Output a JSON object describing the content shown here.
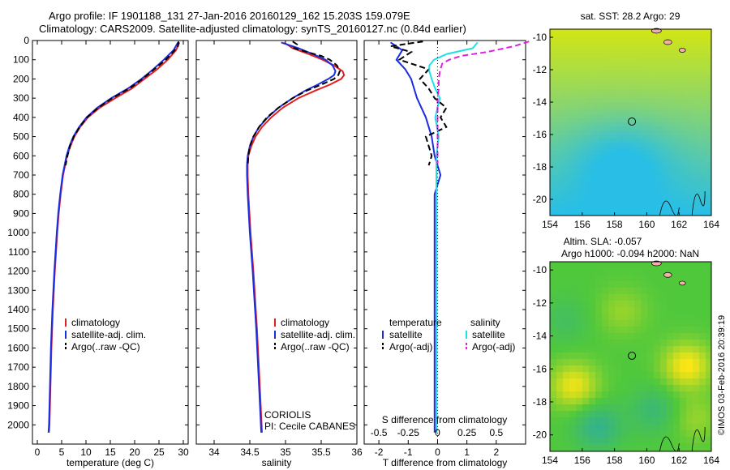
{
  "title": {
    "line1": "Argo profile: IF 1901188_131 27-Jan-2016 20160129_162 15.203S 159.079E",
    "line2": "Climatology: CARS2009. Satellite-adjusted climatology: synTS_20160127.nc (0.84d earlier)"
  },
  "colors": {
    "climatology": "#e02020",
    "satellite": "#1a2ee0",
    "argo": "#000000",
    "sal_satellite": "#1ee0e8",
    "sal_argo": "#e020e0"
  },
  "chart_data": [
    {
      "type": "line",
      "panel": "temperature",
      "xlabel": "temperature (deg C)",
      "ylabel": "",
      "xlim": [
        -1,
        31
      ],
      "ylim": [
        2100,
        0
      ],
      "xticks": [
        "0",
        "5",
        "10",
        "15",
        "20",
        "25",
        "30"
      ],
      "xtick_values": [
        0,
        5,
        10,
        15,
        20,
        25,
        30
      ],
      "yticks": [
        "0",
        "100",
        "200",
        "300",
        "400",
        "500",
        "600",
        "700",
        "800",
        "900",
        "1000",
        "1100",
        "1200",
        "1300",
        "1400",
        "1500",
        "1600",
        "1700",
        "1800",
        "1900",
        "2000"
      ],
      "ytick_values": [
        0,
        100,
        200,
        300,
        400,
        500,
        600,
        700,
        800,
        900,
        1000,
        1100,
        1200,
        1300,
        1400,
        1500,
        1600,
        1700,
        1800,
        1900,
        2000
      ],
      "legend": [
        "climatology",
        "satellite-adj. clim.",
        "Argo(..raw -QC)"
      ],
      "series": [
        {
          "name": "climatology",
          "color": "#e02020",
          "dash": false,
          "depth": [
            10,
            50,
            100,
            150,
            200,
            250,
            300,
            350,
            400,
            450,
            500,
            550,
            600,
            700,
            800,
            900,
            1000,
            1200,
            1400,
            1600,
            1800,
            2000,
            2040
          ],
          "values": [
            29.2,
            28.5,
            26.8,
            24.6,
            22.0,
            19.4,
            16.0,
            12.8,
            10.4,
            8.8,
            7.6,
            6.8,
            6.1,
            5.3,
            4.8,
            4.4,
            4.1,
            3.6,
            3.2,
            2.9,
            2.7,
            2.5,
            2.4
          ]
        },
        {
          "name": "satellite-adj. clim.",
          "color": "#1a2ee0",
          "dash": false,
          "depth": [
            10,
            50,
            100,
            150,
            200,
            250,
            300,
            350,
            400,
            450,
            500,
            550,
            600,
            700,
            800,
            900,
            1000,
            1200,
            1400,
            1600,
            1800,
            2000,
            2040
          ],
          "values": [
            28.9,
            28.0,
            26.0,
            23.8,
            21.4,
            18.6,
            15.2,
            12.3,
            10.1,
            8.6,
            7.4,
            6.6,
            6.0,
            5.2,
            4.7,
            4.3,
            4.0,
            3.5,
            3.1,
            2.8,
            2.6,
            2.4,
            2.3
          ]
        },
        {
          "name": "Argo(..raw -QC)",
          "color": "#000000",
          "dash": true,
          "depth": [
            5,
            30,
            60,
            100,
            150,
            200,
            250,
            300,
            350,
            400,
            450,
            500,
            550,
            600,
            650
          ],
          "values": [
            29.0,
            28.9,
            27.9,
            26.4,
            24.0,
            21.6,
            18.9,
            15.4,
            12.5,
            10.2,
            8.7,
            7.5,
            6.7,
            6.2,
            5.8
          ]
        }
      ]
    },
    {
      "type": "line",
      "panel": "salinity",
      "xlabel": "salinity",
      "ylabel": "",
      "xlim": [
        33.75,
        36.0
      ],
      "ylim": [
        2100,
        0
      ],
      "xticks": [
        "34",
        "34.5",
        "35",
        "35.5",
        "36"
      ],
      "xtick_values": [
        34,
        34.5,
        35,
        35.5,
        36
      ],
      "legend": [
        "climatology",
        "satellite-adj. clim.",
        "Argo(..raw -QC)"
      ],
      "annotation": [
        "CORIOLIS",
        "PI: Cecile CABANES"
      ],
      "series": [
        {
          "name": "climatology",
          "color": "#e02020",
          "dash": false,
          "depth": [
            10,
            40,
            70,
            100,
            130,
            160,
            180,
            200,
            230,
            260,
            300,
            350,
            400,
            450,
            500,
            550,
            600,
            650,
            700,
            800,
            1000,
            1200,
            1500,
            1800,
            2040
          ],
          "values": [
            34.98,
            35.1,
            35.32,
            35.52,
            35.68,
            35.8,
            35.82,
            35.78,
            35.62,
            35.42,
            35.18,
            34.96,
            34.8,
            34.67,
            34.58,
            34.52,
            34.48,
            34.47,
            34.47,
            34.48,
            34.51,
            34.55,
            34.6,
            34.64,
            34.67
          ]
        },
        {
          "name": "satellite-adj. clim.",
          "color": "#1a2ee0",
          "dash": false,
          "depth": [
            10,
            40,
            70,
            100,
            130,
            160,
            180,
            200,
            230,
            260,
            300,
            350,
            400,
            450,
            500,
            550,
            600,
            650,
            700,
            800,
            1000,
            1200,
            1500,
            1800,
            2040
          ],
          "values": [
            34.94,
            35.18,
            35.38,
            35.56,
            35.66,
            35.7,
            35.68,
            35.6,
            35.45,
            35.28,
            35.1,
            34.9,
            34.75,
            34.63,
            34.55,
            34.5,
            34.47,
            34.46,
            34.46,
            34.47,
            34.5,
            34.54,
            34.59,
            34.63,
            34.66
          ]
        },
        {
          "name": "Argo(..raw -QC)",
          "color": "#000000",
          "dash": true,
          "depth": [
            5,
            20,
            40,
            60,
            80,
            100,
            130,
            160,
            180,
            200,
            230,
            260,
            300,
            350,
            400,
            450,
            500,
            550,
            600,
            650
          ],
          "values": [
            35.1,
            35.16,
            35.12,
            35.3,
            35.5,
            35.62,
            35.72,
            35.76,
            35.74,
            35.68,
            35.5,
            35.3,
            35.1,
            34.9,
            34.74,
            34.63,
            34.55,
            34.5,
            34.48,
            34.47
          ]
        }
      ]
    },
    {
      "type": "line",
      "panel": "difference",
      "xlabel": "T difference from climatology",
      "xlabel_top": "S difference from climatology",
      "xlim": [
        -2.5,
        3.0
      ],
      "ylim": [
        2100,
        0
      ],
      "xticks": [
        "-2",
        "-1",
        "0",
        "1",
        "2"
      ],
      "xtick_values": [
        -2,
        -1,
        0,
        1,
        2
      ],
      "sticks": [
        "-0.5",
        "-0.25",
        "0",
        "0.25",
        "0.5"
      ],
      "stick_values": [
        -0.5,
        -0.25,
        0,
        0.25,
        0.5
      ],
      "s_scale": 4,
      "legend_temperature": [
        "temperature",
        "satellite",
        "Argo(-adj)"
      ],
      "legend_salinity": [
        "salinity",
        "satellite",
        "Argo(-adj)"
      ],
      "series": [
        {
          "name": "T satellite",
          "color": "#1a2ee0",
          "dash": false,
          "depth": [
            10,
            50,
            100,
            150,
            200,
            250,
            300,
            400,
            500,
            600,
            700,
            800,
            1000,
            1200,
            1500,
            1800,
            2040
          ],
          "values": [
            -1.6,
            -1.2,
            -1.4,
            -1.1,
            -0.9,
            -0.8,
            -0.7,
            -0.4,
            -0.2,
            -0.1,
            0.1,
            -0.1,
            -0.1,
            -0.1,
            -0.1,
            -0.1,
            -0.1
          ]
        },
        {
          "name": "T Argo(-adj)",
          "color": "#000000",
          "dash": true,
          "depth": [
            5,
            30,
            60,
            100,
            150,
            200,
            250,
            300,
            350,
            400,
            450,
            500,
            550,
            600,
            650
          ],
          "values": [
            -0.5,
            -1.6,
            -0.9,
            -1.3,
            -0.3,
            -0.6,
            -0.3,
            -0.1,
            0.3,
            0.1,
            0.3,
            -0.4,
            -0.3,
            -0.2,
            -0.3
          ]
        },
        {
          "name": "S satellite",
          "color": "#1ee0e8",
          "dash": false,
          "depth": [
            10,
            40,
            70,
            100,
            130,
            160,
            200,
            250,
            300,
            400,
            500,
            600,
            700,
            800,
            1000,
            1200,
            1500,
            1800,
            2040
          ],
          "values": [
            0.34,
            0.3,
            0.08,
            -0.03,
            -0.07,
            -0.07,
            -0.05,
            -0.02,
            0.02,
            -0.02,
            0.01,
            -0.01,
            -0.01,
            -0.01,
            -0.01,
            -0.01,
            -0.01,
            -0.01,
            -0.01
          ]
        },
        {
          "name": "S Argo(-adj)",
          "color": "#e020e0",
          "dash": true,
          "depth": [
            5,
            30,
            60,
            80,
            100,
            120,
            160,
            200,
            250,
            300,
            400,
            500,
            600,
            650
          ],
          "values": [
            0.78,
            0.65,
            0.42,
            0.2,
            0.1,
            0.04,
            0.02,
            0.01,
            0.01,
            0.0,
            0.0,
            0.0,
            0.0,
            0.0
          ]
        }
      ]
    },
    {
      "type": "heatmap",
      "panel": "sst-map",
      "title": "sat. SST: 28.2 Argo: 29",
      "xlim": [
        154,
        164
      ],
      "ylim": [
        -21,
        -9.5
      ],
      "xticks": [
        "154",
        "156",
        "158",
        "160",
        "162",
        "164"
      ],
      "xtick_values": [
        154,
        156,
        158,
        160,
        162,
        164
      ],
      "yticks": [
        "-10",
        "-12",
        "-14",
        "-16",
        "-18",
        "-20"
      ],
      "ytick_values": [
        -10,
        -12,
        -14,
        -16,
        -18,
        -20
      ],
      "marker": {
        "lon": 159.08,
        "lat": -15.2
      }
    },
    {
      "type": "heatmap",
      "panel": "sla-map",
      "title": "Altim. SLA: -0.057",
      "subtitle": "Argo h1000: -0.094 h2000: NaN",
      "xlim": [
        154,
        164
      ],
      "ylim": [
        -21,
        -9.5
      ],
      "xticks": [
        "154",
        "156",
        "158",
        "160",
        "162",
        "164"
      ],
      "xtick_values": [
        154,
        156,
        158,
        160,
        162,
        164
      ],
      "yticks": [
        "-10",
        "-12",
        "-14",
        "-16",
        "-18",
        "-20"
      ],
      "ytick_values": [
        -10,
        -12,
        -14,
        -16,
        -18,
        -20
      ],
      "marker": {
        "lon": 159.08,
        "lat": -15.2
      }
    }
  ],
  "credit": "©IMOS 03-Feb-2016 20:39:19"
}
